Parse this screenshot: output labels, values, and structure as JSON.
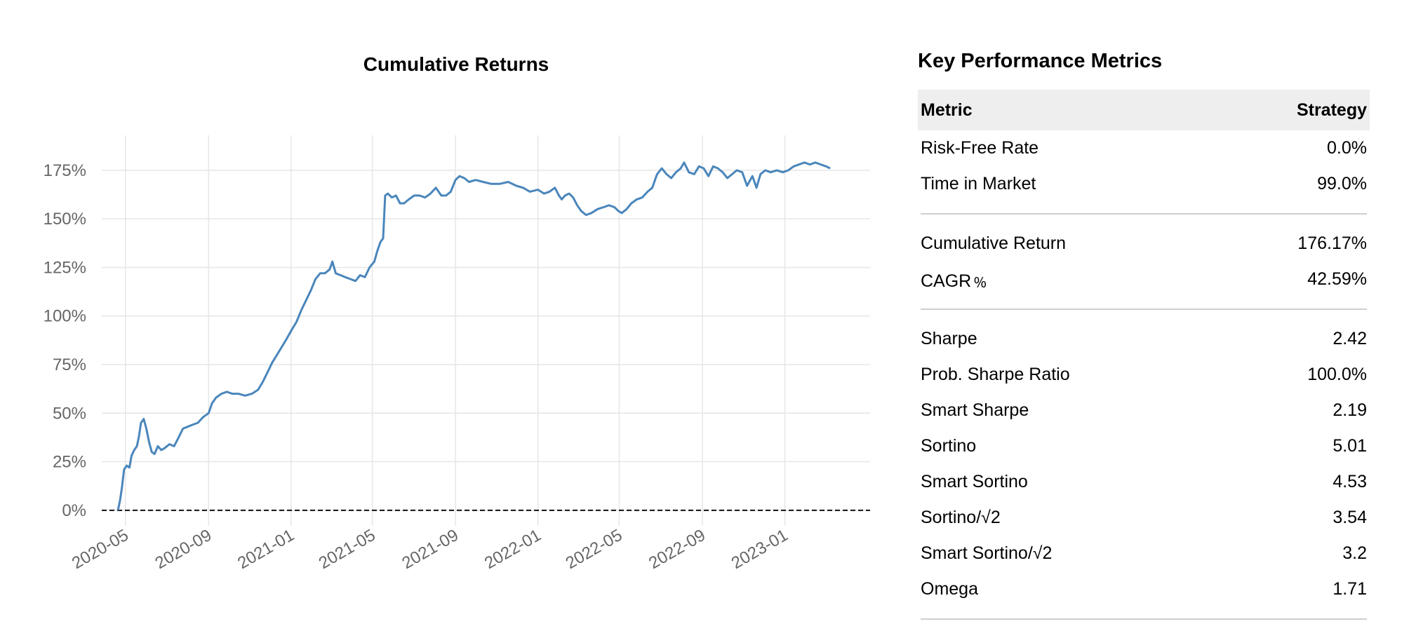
{
  "chart_data": {
    "type": "line",
    "title": "Cumulative Returns",
    "xlabel": "",
    "ylabel": "",
    "ylim": [
      -0.08,
      1.93
    ],
    "yticks": [
      {
        "value": 0,
        "label": "0%"
      },
      {
        "value": 0.25,
        "label": "25%"
      },
      {
        "value": 0.5,
        "label": "50%"
      },
      {
        "value": 0.75,
        "label": "75%"
      },
      {
        "value": 1.0,
        "label": "100%"
      },
      {
        "value": 1.25,
        "label": "125%"
      },
      {
        "value": 1.5,
        "label": "150%"
      },
      {
        "value": 1.75,
        "label": "175%"
      }
    ],
    "xlim": [
      "2020-03-27",
      "2023-05-07"
    ],
    "xticks": [
      "2020-05",
      "2020-09",
      "2021-01",
      "2021-05",
      "2021-09",
      "2022-01",
      "2022-05",
      "2022-09",
      "2023-01"
    ],
    "grid": true,
    "baseline": 0,
    "series": [
      {
        "color": "#4a86bb",
        "points": [
          [
            "2020-04-20",
            0.0
          ],
          [
            "2020-04-23",
            0.05
          ],
          [
            "2020-04-26",
            0.12
          ],
          [
            "2020-04-29",
            0.21
          ],
          [
            "2020-05-03",
            0.23
          ],
          [
            "2020-05-07",
            0.22
          ],
          [
            "2020-05-10",
            0.28
          ],
          [
            "2020-05-14",
            0.31
          ],
          [
            "2020-05-18",
            0.33
          ],
          [
            "2020-05-21",
            0.38
          ],
          [
            "2020-05-24",
            0.45
          ],
          [
            "2020-05-28",
            0.47
          ],
          [
            "2020-06-01",
            0.42
          ],
          [
            "2020-06-05",
            0.35
          ],
          [
            "2020-06-09",
            0.3
          ],
          [
            "2020-06-13",
            0.29
          ],
          [
            "2020-06-18",
            0.33
          ],
          [
            "2020-06-23",
            0.31
          ],
          [
            "2020-06-28",
            0.32
          ],
          [
            "2020-07-05",
            0.34
          ],
          [
            "2020-07-12",
            0.33
          ],
          [
            "2020-07-18",
            0.37
          ],
          [
            "2020-07-25",
            0.42
          ],
          [
            "2020-08-01",
            0.43
          ],
          [
            "2020-08-08",
            0.44
          ],
          [
            "2020-08-16",
            0.45
          ],
          [
            "2020-08-24",
            0.48
          ],
          [
            "2020-09-01",
            0.5
          ],
          [
            "2020-09-06",
            0.55
          ],
          [
            "2020-09-12",
            0.58
          ],
          [
            "2020-09-20",
            0.6
          ],
          [
            "2020-09-28",
            0.61
          ],
          [
            "2020-10-06",
            0.6
          ],
          [
            "2020-10-15",
            0.6
          ],
          [
            "2020-10-25",
            0.59
          ],
          [
            "2020-11-04",
            0.6
          ],
          [
            "2020-11-13",
            0.62
          ],
          [
            "2020-11-20",
            0.66
          ],
          [
            "2020-11-27",
            0.71
          ],
          [
            "2020-12-04",
            0.76
          ],
          [
            "2020-12-11",
            0.8
          ],
          [
            "2020-12-18",
            0.84
          ],
          [
            "2020-12-25",
            0.88
          ],
          [
            "2021-01-02",
            0.93
          ],
          [
            "2021-01-09",
            0.97
          ],
          [
            "2021-01-16",
            1.03
          ],
          [
            "2021-01-23",
            1.08
          ],
          [
            "2021-01-30",
            1.13
          ],
          [
            "2021-02-06",
            1.19
          ],
          [
            "2021-02-13",
            1.22
          ],
          [
            "2021-02-20",
            1.22
          ],
          [
            "2021-02-27",
            1.24
          ],
          [
            "2021-03-03",
            1.28
          ],
          [
            "2021-03-08",
            1.22
          ],
          [
            "2021-03-15",
            1.21
          ],
          [
            "2021-03-22",
            1.2
          ],
          [
            "2021-03-30",
            1.19
          ],
          [
            "2021-04-06",
            1.18
          ],
          [
            "2021-04-13",
            1.21
          ],
          [
            "2021-04-20",
            1.2
          ],
          [
            "2021-04-27",
            1.25
          ],
          [
            "2021-05-04",
            1.28
          ],
          [
            "2021-05-08",
            1.33
          ],
          [
            "2021-05-13",
            1.38
          ],
          [
            "2021-05-17",
            1.4
          ],
          [
            "2021-05-20",
            1.62
          ],
          [
            "2021-05-24",
            1.63
          ],
          [
            "2021-05-30",
            1.61
          ],
          [
            "2021-06-05",
            1.62
          ],
          [
            "2021-06-11",
            1.58
          ],
          [
            "2021-06-17",
            1.58
          ],
          [
            "2021-06-24",
            1.6
          ],
          [
            "2021-07-02",
            1.62
          ],
          [
            "2021-07-10",
            1.62
          ],
          [
            "2021-07-18",
            1.61
          ],
          [
            "2021-07-26",
            1.63
          ],
          [
            "2021-08-03",
            1.66
          ],
          [
            "2021-08-11",
            1.62
          ],
          [
            "2021-08-18",
            1.62
          ],
          [
            "2021-08-25",
            1.64
          ],
          [
            "2021-09-01",
            1.7
          ],
          [
            "2021-09-07",
            1.72
          ],
          [
            "2021-09-14",
            1.71
          ],
          [
            "2021-09-21",
            1.69
          ],
          [
            "2021-10-01",
            1.7
          ],
          [
            "2021-10-12",
            1.69
          ],
          [
            "2021-10-24",
            1.68
          ],
          [
            "2021-11-05",
            1.68
          ],
          [
            "2021-11-18",
            1.69
          ],
          [
            "2021-11-30",
            1.67
          ],
          [
            "2021-12-10",
            1.66
          ],
          [
            "2021-12-20",
            1.64
          ],
          [
            "2022-01-01",
            1.65
          ],
          [
            "2022-01-10",
            1.63
          ],
          [
            "2022-01-18",
            1.64
          ],
          [
            "2022-01-26",
            1.66
          ],
          [
            "2022-02-01",
            1.62
          ],
          [
            "2022-02-05",
            1.6
          ],
          [
            "2022-02-10",
            1.62
          ],
          [
            "2022-02-16",
            1.63
          ],
          [
            "2022-02-22",
            1.61
          ],
          [
            "2022-02-28",
            1.57
          ],
          [
            "2022-03-06",
            1.54
          ],
          [
            "2022-03-13",
            1.52
          ],
          [
            "2022-03-21",
            1.53
          ],
          [
            "2022-03-30",
            1.55
          ],
          [
            "2022-04-08",
            1.56
          ],
          [
            "2022-04-16",
            1.57
          ],
          [
            "2022-04-24",
            1.56
          ],
          [
            "2022-04-30",
            1.54
          ],
          [
            "2022-05-05",
            1.53
          ],
          [
            "2022-05-12",
            1.55
          ],
          [
            "2022-05-19",
            1.58
          ],
          [
            "2022-05-27",
            1.6
          ],
          [
            "2022-06-04",
            1.61
          ],
          [
            "2022-06-12",
            1.64
          ],
          [
            "2022-06-19",
            1.66
          ],
          [
            "2022-06-26",
            1.73
          ],
          [
            "2022-07-03",
            1.76
          ],
          [
            "2022-07-10",
            1.73
          ],
          [
            "2022-07-17",
            1.71
          ],
          [
            "2022-07-24",
            1.74
          ],
          [
            "2022-07-31",
            1.76
          ],
          [
            "2022-08-05",
            1.79
          ],
          [
            "2022-08-12",
            1.74
          ],
          [
            "2022-08-20",
            1.73
          ],
          [
            "2022-08-27",
            1.77
          ],
          [
            "2022-09-03",
            1.76
          ],
          [
            "2022-09-10",
            1.72
          ],
          [
            "2022-09-17",
            1.77
          ],
          [
            "2022-09-24",
            1.76
          ],
          [
            "2022-10-01",
            1.74
          ],
          [
            "2022-10-08",
            1.71
          ],
          [
            "2022-10-15",
            1.73
          ],
          [
            "2022-10-22",
            1.75
          ],
          [
            "2022-10-30",
            1.74
          ],
          [
            "2022-11-06",
            1.67
          ],
          [
            "2022-11-14",
            1.72
          ],
          [
            "2022-11-20",
            1.66
          ],
          [
            "2022-11-26",
            1.73
          ],
          [
            "2022-12-03",
            1.75
          ],
          [
            "2022-12-11",
            1.74
          ],
          [
            "2022-12-20",
            1.75
          ],
          [
            "2022-12-29",
            1.74
          ],
          [
            "2023-01-06",
            1.75
          ],
          [
            "2023-01-14",
            1.77
          ],
          [
            "2023-01-22",
            1.78
          ],
          [
            "2023-01-30",
            1.79
          ],
          [
            "2023-02-07",
            1.78
          ],
          [
            "2023-02-15",
            1.79
          ],
          [
            "2023-02-23",
            1.78
          ],
          [
            "2023-03-03",
            1.77
          ],
          [
            "2023-03-09",
            1.76
          ]
        ]
      }
    ]
  },
  "metrics": {
    "title": "Key Performance Metrics",
    "header_metric": "Metric",
    "header_strategy": "Strategy",
    "groups": [
      [
        {
          "label": "Risk-Free Rate",
          "value": "0.0%"
        },
        {
          "label": "Time in Market",
          "value": "99.0%"
        }
      ],
      [
        {
          "label": "Cumulative Return",
          "value": "176.17%"
        },
        {
          "label": "CAGR﹪",
          "value": "42.59%"
        }
      ],
      [
        {
          "label": "Sharpe",
          "value": "2.42"
        },
        {
          "label": "Prob. Sharpe Ratio",
          "value": "100.0%"
        },
        {
          "label": "Smart Sharpe",
          "value": "2.19"
        },
        {
          "label": "Sortino",
          "value": "5.01"
        },
        {
          "label": "Smart Sortino",
          "value": "4.53"
        },
        {
          "label": "Sortino/√2",
          "value": "3.54"
        },
        {
          "label": "Smart Sortino/√2",
          "value": "3.2"
        },
        {
          "label": "Omega",
          "value": "1.71"
        }
      ]
    ]
  }
}
